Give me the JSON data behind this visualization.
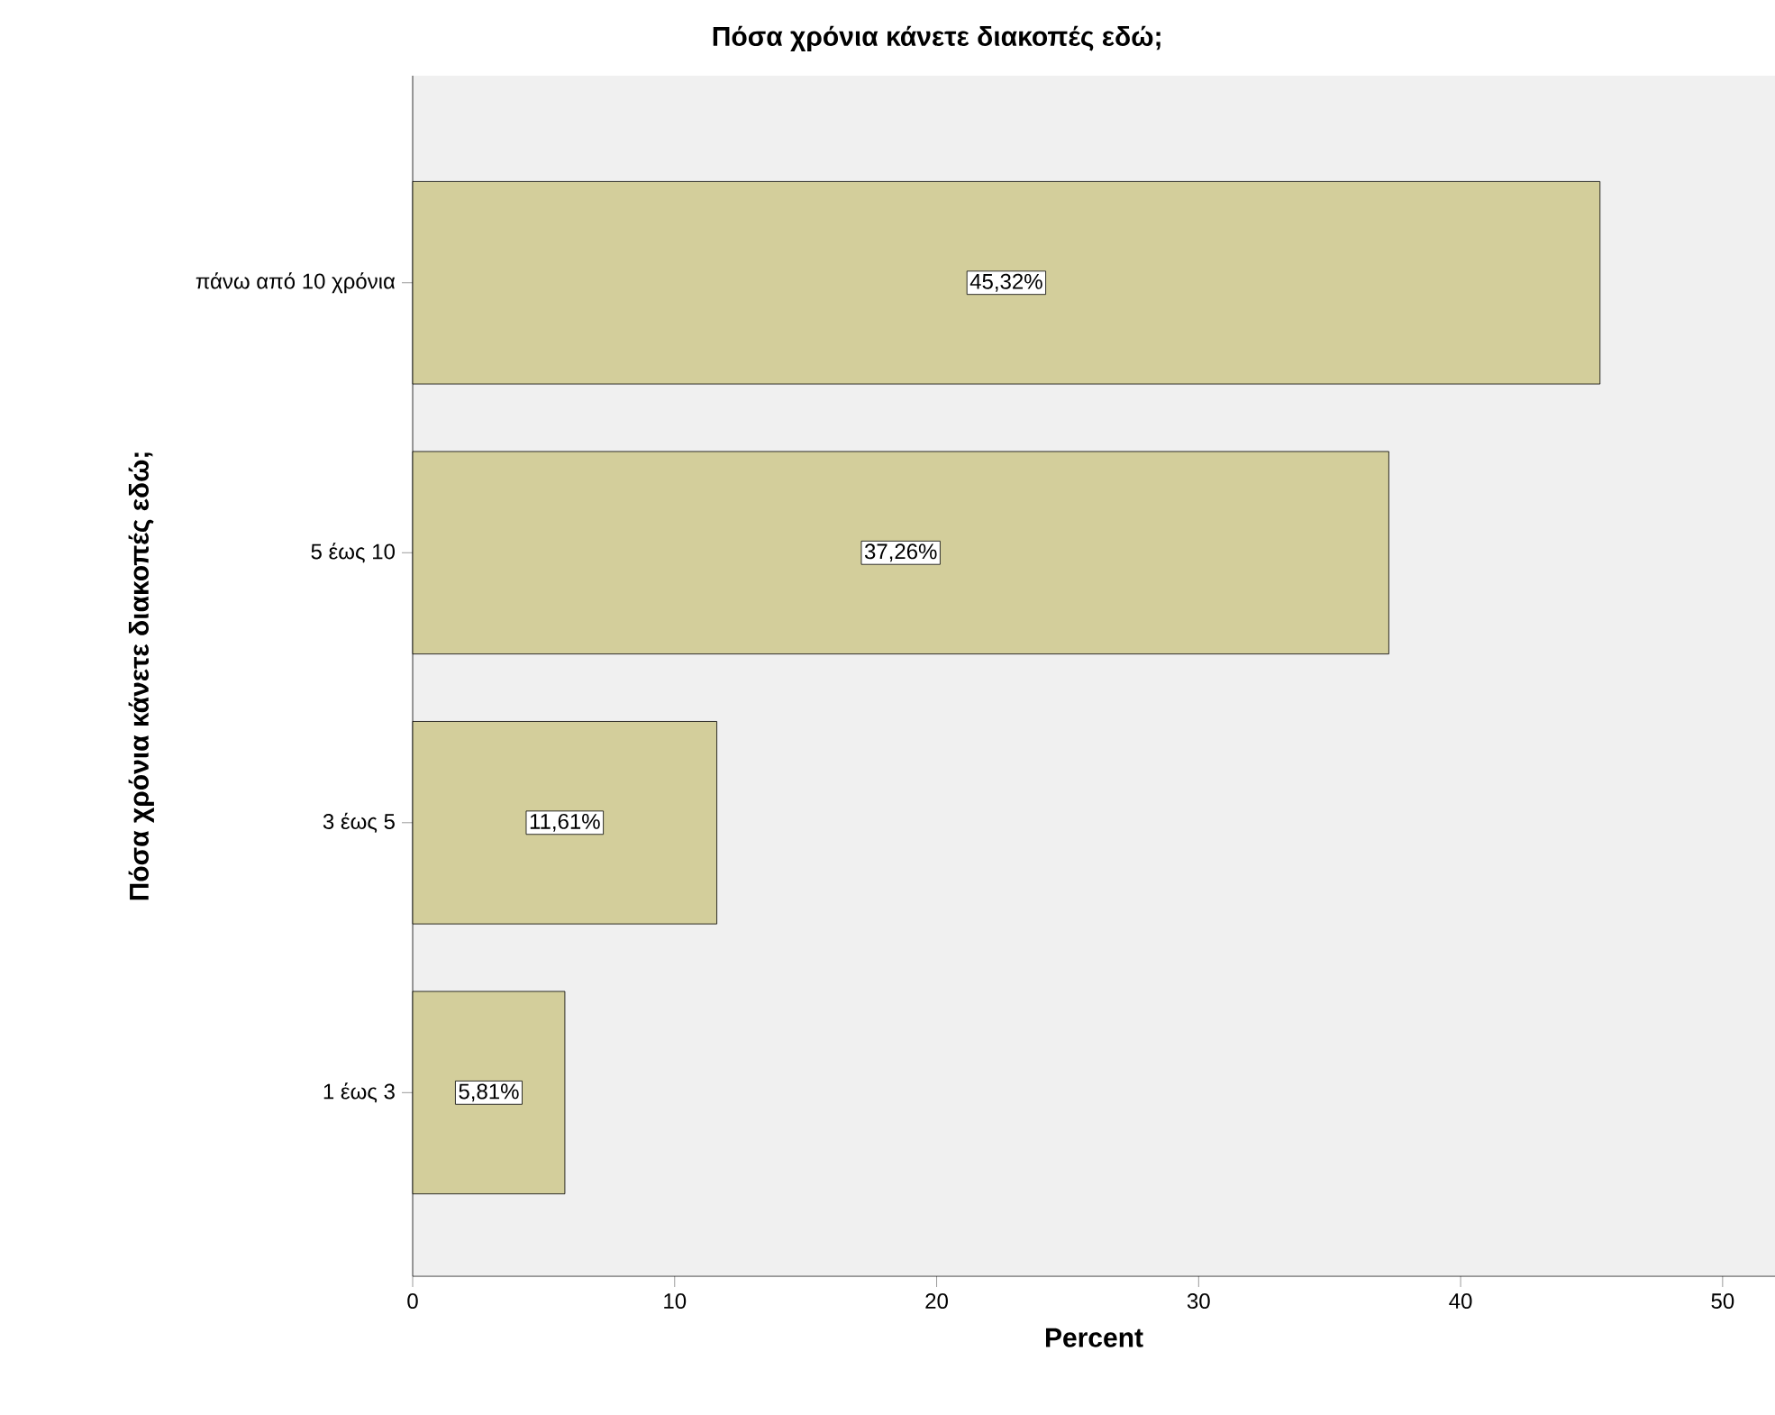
{
  "chart_data": {
    "type": "bar",
    "orientation": "horizontal",
    "title": "Πόσα χρόνια κάνετε διακοπές εδώ;",
    "xlabel": "Percent",
    "ylabel": "Πόσα χρόνια κάνετε διακοπές εδώ;",
    "categories": [
      "πάνω από 10 χρόνια",
      "5 έως 10",
      "3 έως 5",
      "1 έως 3"
    ],
    "values": [
      45.32,
      37.26,
      11.61,
      5.81
    ],
    "value_labels": [
      "45,32%",
      "37,26%",
      "11,61%",
      "5,81%"
    ],
    "color": "#d3ce9b",
    "xlim": [
      0,
      52
    ],
    "xticks": [
      0,
      10,
      20,
      30,
      40,
      50
    ],
    "grid": false
  }
}
